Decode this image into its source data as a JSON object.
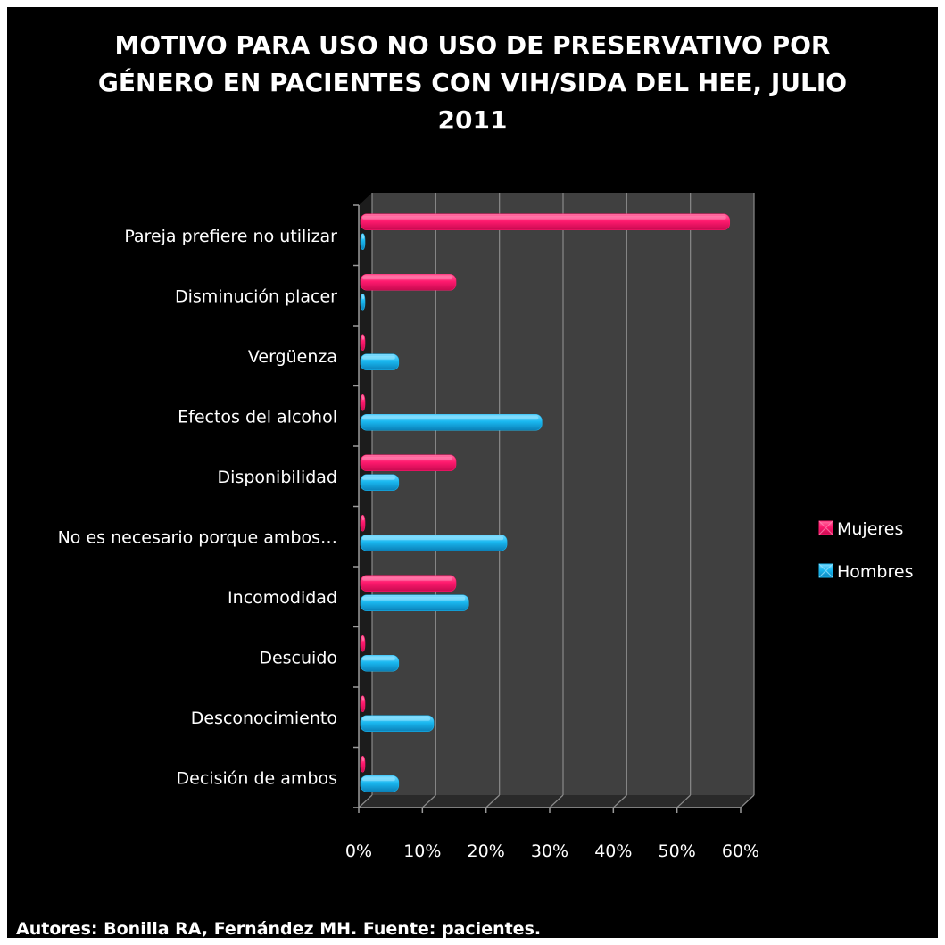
{
  "chart_data": {
    "type": "bar",
    "orientation": "horizontal",
    "title_lines": [
      "MOTIVO PARA USO NO USO DE PRESERVATIVO POR",
      "GÉNERO EN PACIENTES CON VIH/SIDA DEL HEE, JULIO",
      "2011"
    ],
    "categories": [
      "Pareja prefiere no utilizar",
      "Disminución placer",
      "Vergüenza",
      "Efectos del alcohol",
      "Disponibilidad",
      "No es necesario porque ambos…",
      "Incomodidad",
      "Descuido",
      "Desconocimiento",
      "Decisión de ambos"
    ],
    "series": [
      {
        "name": "Mujeres",
        "color": "#ff1a6e",
        "values": [
          58,
          15,
          0,
          0,
          15,
          0,
          15,
          0,
          0,
          0
        ]
      },
      {
        "name": "Hombres",
        "color": "#1ab8f0",
        "values": [
          0,
          0,
          6,
          28.5,
          6,
          23,
          17,
          6,
          11.5,
          6
        ]
      }
    ],
    "x_ticks": [
      "0%",
      "10%",
      "20%",
      "30%",
      "40%",
      "50%",
      "60%"
    ],
    "xlim": [
      0,
      60
    ],
    "unit": "%",
    "grid": true,
    "legend_position": "right",
    "background": "#000000",
    "plot_wall_color": "#404040"
  },
  "footer": "Autores: Bonilla RA, Fernández MH. Fuente: pacientes."
}
